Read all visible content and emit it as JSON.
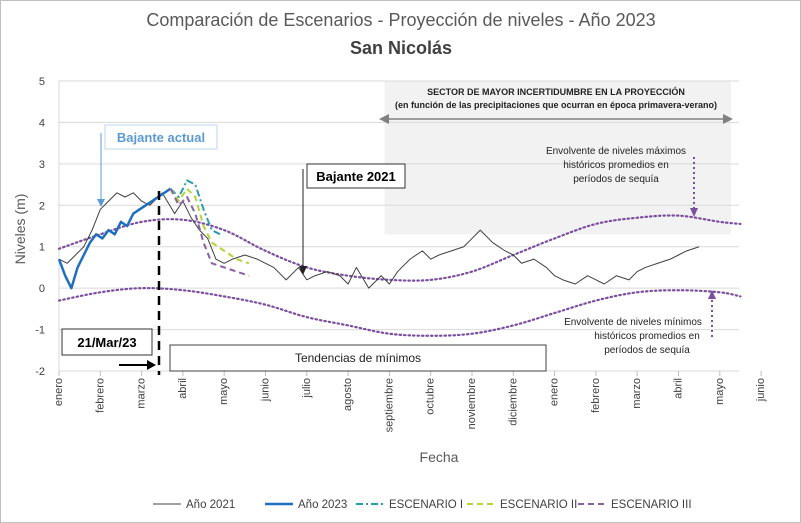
{
  "chart_data": {
    "type": "line",
    "title": "Comparación de Escenarios - Proyección de niveles - Año 2023",
    "subtitle": "San Nicolás",
    "xlabel": "Fecha",
    "ylabel": "Niveles (m)",
    "ylim": [
      -2,
      5
    ],
    "y_ticks": [
      "5",
      "4",
      "3",
      "2",
      "1",
      "0",
      "-1",
      "-2"
    ],
    "x_ticks": [
      "enero",
      "febrero",
      "marzo",
      "abril",
      "mayo",
      "junio",
      "julio",
      "agosto",
      "septiembre",
      "octubre",
      "noviembre",
      "diciembre",
      "enero",
      "febrero",
      "marzo",
      "abril",
      "mayo",
      "junio"
    ],
    "grid": true,
    "legend_position": "bottom",
    "legend": [
      "Año 2021",
      "Año 2023",
      "ESCENARIO I",
      "ESCENARIO II",
      "ESCENARIO III"
    ],
    "colors": {
      "anio_2021": "#404040",
      "anio_2023": "#1f6fc0",
      "escenario_1": "#2a9aae",
      "escenario_2": "#b5d334",
      "escenario_3": "#8a5fa6",
      "envelope": "#7b4fa0",
      "arrow_light": "#5b9bd5",
      "shade": "#f2f2f2"
    },
    "series": [
      {
        "name": "Año 2021",
        "x_months": [
          0,
          0.2,
          0.4,
          0.6,
          0.8,
          1.0,
          1.2,
          1.4,
          1.6,
          1.8,
          2.0,
          2.2,
          2.5,
          2.8,
          3.0,
          3.2,
          3.4,
          3.6,
          3.8,
          4.0,
          4.2,
          4.5,
          4.8,
          5.0,
          5.2,
          5.5,
          5.8,
          6.0,
          6.2,
          6.5,
          6.8,
          7.0,
          7.2,
          7.5,
          7.8,
          8.0,
          8.2,
          8.5,
          8.8,
          9.0,
          9.2,
          9.5,
          9.8,
          10.0,
          10.2,
          10.5,
          10.8,
          11.0,
          11.2,
          11.5,
          11.8,
          12.0,
          12.2,
          12.5,
          12.8,
          13.0,
          13.2,
          13.5,
          13.8,
          14.0,
          14.2,
          14.5,
          14.8,
          15.0,
          15.2,
          15.5
        ],
        "values": [
          0.7,
          0.6,
          0.8,
          1.0,
          1.4,
          1.9,
          2.1,
          2.3,
          2.2,
          2.3,
          2.1,
          2.0,
          2.3,
          1.8,
          2.1,
          1.7,
          1.4,
          1.2,
          0.7,
          0.6,
          0.7,
          0.8,
          0.7,
          0.6,
          0.5,
          0.2,
          0.5,
          0.2,
          0.3,
          0.4,
          0.3,
          0.1,
          0.5,
          0.0,
          0.3,
          0.1,
          0.4,
          0.7,
          0.9,
          0.7,
          0.8,
          0.9,
          1.0,
          1.2,
          1.4,
          1.1,
          0.9,
          0.8,
          0.6,
          0.7,
          0.5,
          0.3,
          0.2,
          0.1,
          0.3,
          0.2,
          0.1,
          0.3,
          0.2,
          0.4,
          0.5,
          0.6,
          0.7,
          0.8,
          0.9,
          1.0
        ]
      },
      {
        "name": "Año 2023",
        "x_months": [
          0,
          0.15,
          0.3,
          0.45,
          0.6,
          0.75,
          0.9,
          1.05,
          1.2,
          1.35,
          1.5,
          1.65,
          1.8,
          1.95,
          2.1,
          2.25,
          2.4,
          2.55,
          2.7
        ],
        "values": [
          0.7,
          0.3,
          0.0,
          0.5,
          0.8,
          1.1,
          1.3,
          1.2,
          1.4,
          1.3,
          1.6,
          1.5,
          1.8,
          1.9,
          2.0,
          2.1,
          2.2,
          2.3,
          2.4
        ]
      },
      {
        "name": "ESCENARIO I",
        "x_months": [
          2.7,
          2.9,
          3.1,
          3.3,
          3.5,
          3.7,
          3.9
        ],
        "values": [
          2.4,
          2.2,
          2.6,
          2.5,
          1.9,
          1.4,
          1.3
        ]
      },
      {
        "name": "ESCENARIO II",
        "x_months": [
          2.7,
          2.9,
          3.1,
          3.3,
          3.5,
          3.7,
          4.0,
          4.3,
          4.6
        ],
        "values": [
          2.4,
          2.1,
          2.4,
          2.2,
          1.5,
          1.1,
          0.9,
          0.7,
          0.6
        ]
      },
      {
        "name": "ESCENARIO III",
        "x_months": [
          2.7,
          2.9,
          3.1,
          3.3,
          3.5,
          3.7,
          4.0,
          4.3,
          4.6
        ],
        "values": [
          2.4,
          2.0,
          2.2,
          1.8,
          1.1,
          0.6,
          0.5,
          0.4,
          0.3
        ]
      }
    ],
    "envelopes": {
      "max": {
        "x_months": [
          0,
          1,
          2,
          3,
          4,
          5,
          6,
          7,
          8,
          9,
          10,
          11,
          12,
          13,
          14,
          15,
          16,
          16.5
        ],
        "values": [
          0.95,
          1.3,
          1.6,
          1.65,
          1.4,
          0.9,
          0.5,
          0.3,
          0.2,
          0.2,
          0.4,
          0.8,
          1.2,
          1.55,
          1.7,
          1.75,
          1.6,
          1.55
        ]
      },
      "min": {
        "x_months": [
          0,
          1,
          2,
          3,
          4,
          5,
          6,
          7,
          8,
          9,
          10,
          11,
          12,
          13,
          14,
          15,
          16,
          16.5
        ],
        "values": [
          -0.3,
          -0.1,
          0.0,
          -0.05,
          -0.2,
          -0.4,
          -0.7,
          -0.9,
          -1.1,
          -1.15,
          -1.1,
          -0.9,
          -0.6,
          -0.3,
          -0.1,
          -0.05,
          -0.1,
          -0.2
        ]
      }
    },
    "annotations": {
      "bajante_actual": "Bajante actual",
      "bajante_2021": "Bajante 2021",
      "fecha_corte": "21/Mar/23",
      "tendencias": "Tendencias de mínimos",
      "sector_title": "SECTOR DE MAYOR INCERTIDUMBRE EN LA PROYECCIÓN",
      "sector_subtitle": "(en función de las precipitaciones que ocurran  en época primavera-verano)",
      "env_max_1": "Envolvente de niveles máximos",
      "env_max_2": "históricos promedios en",
      "env_max_3": "períodos de sequía",
      "env_min_1": "Envolvente de niveles mínimos",
      "env_min_2": "históricos promedios en",
      "env_min_3": "períodos de sequía"
    }
  }
}
